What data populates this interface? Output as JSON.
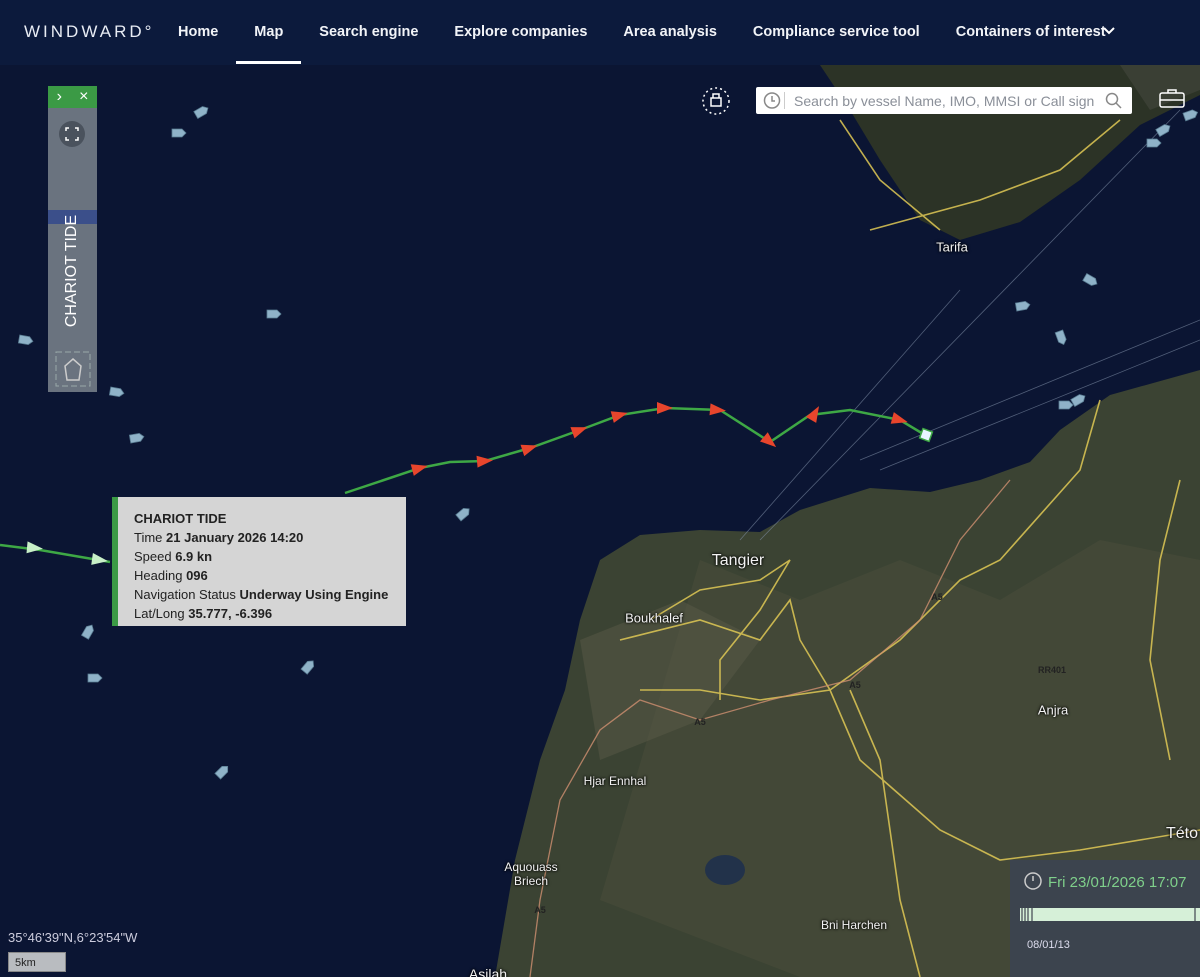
{
  "nav": {
    "brand": "WINDWARD°",
    "items": [
      "Home",
      "Map",
      "Search engine",
      "Explore companies",
      "Area analysis",
      "Compliance service tool",
      "Containers of interest"
    ]
  },
  "search": {
    "placeholder": "Search by vessel Name, IMO, MMSI or Call sign"
  },
  "side_panel": {
    "vessel_name": "CHARIOT TIDE"
  },
  "tooltip": {
    "title": "CHARIOT TIDE",
    "rows": [
      {
        "label": "Time",
        "value": "21 January 2026 14:20"
      },
      {
        "label": "Speed",
        "value": "6.9 kn"
      },
      {
        "label": "Heading",
        "value": "096"
      },
      {
        "label": "Navigation Status",
        "value": "Underway Using Engine"
      },
      {
        "label": "Lat/Long",
        "value": "35.777, -6.396"
      }
    ]
  },
  "map": {
    "places": [
      "Tarifa",
      "Tangier",
      "Boukhalef",
      "Hjar Ennhal",
      "Aquouass Briech",
      "Bni Harchen",
      "Anjra",
      "Této",
      "Asilah"
    ],
    "road_codes": [
      "A5",
      "A5",
      "A5",
      "A5",
      "RR401"
    ]
  },
  "coordinates": "35°46'39\"N,6°23'54\"W",
  "scale": "5km",
  "timeline": {
    "datetime": "Fri 23/01/2026 17:07",
    "start": "08/01/13"
  }
}
